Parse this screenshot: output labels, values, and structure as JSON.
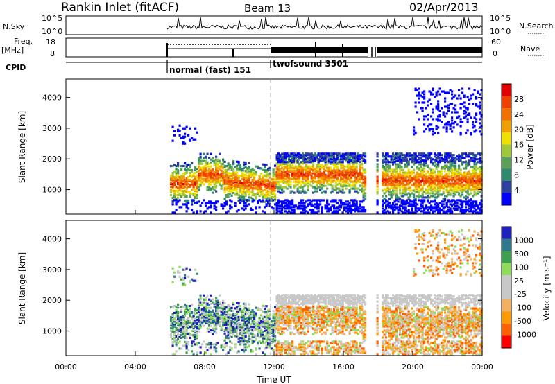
{
  "header": {
    "station": "Rankin Inlet (fitACF)",
    "beam": "Beam 13",
    "date": "02/Apr/2013"
  },
  "top_panels": {
    "nsky_label": "N.Sky",
    "nsearch_label": "N.Search",
    "noise_ticks": [
      "10^5",
      "10^0"
    ],
    "freq_label_1": "Freq.",
    "freq_label_2": "[MHz]",
    "freq_ticks": [
      "18",
      "8"
    ],
    "nave_label": "Nave",
    "nave_ticks": [
      "60",
      "0"
    ],
    "cpid_label": "CPID",
    "cpid_modes": [
      {
        "label": "normal (fast) 151",
        "start_hour": 6,
        "end_hour": 12
      },
      {
        "label": "twofsound 3501",
        "start_hour": 12,
        "end_hour": 24
      }
    ]
  },
  "colors": {
    "power_scale": [
      "#0000ff",
      "#2e3fa0",
      "#2e8a6e",
      "#5aa05a",
      "#9fc93a",
      "#f0e000",
      "#f0a000",
      "#f07000",
      "#f04000",
      "#e00000"
    ],
    "velocity_scale": [
      "#ff0000",
      "#ff6000",
      "#ff9a00",
      "#f2b060",
      "#c8c8c8",
      "#c8c8c8",
      "#8fdc5a",
      "#3ca050",
      "#2e7a8a",
      "#2020c0"
    ]
  },
  "chart_data": [
    {
      "type": "heatmap",
      "name": "power-panel",
      "ylabel": "Slant Range [km]",
      "yticks": [
        1000,
        2000,
        3000,
        4000
      ],
      "ylim": [
        200,
        4600
      ],
      "xlim": [
        0,
        24
      ],
      "colorbar_label": "Power [dB]",
      "colorbar_ticks": [
        "28",
        "24",
        "20",
        "16",
        "12",
        "8",
        "4"
      ],
      "color_range": [
        0,
        32
      ]
    },
    {
      "type": "heatmap",
      "name": "velocity-panel",
      "ylabel": "Slant Range [km]",
      "yticks": [
        1000,
        2000,
        3000,
        4000
      ],
      "ylim": [
        200,
        4600
      ],
      "xlim": [
        0,
        24
      ],
      "xlabel": "Time UT",
      "xticks": [
        "00:00",
        "04:00",
        "08:00",
        "12:00",
        "16:00",
        "20:00",
        "00:00"
      ],
      "colorbar_label": "Velocity [m s⁻¹]",
      "colorbar_ticks": [
        "1000",
        "500",
        "100",
        "25",
        "-25",
        "-100",
        "-500",
        "-1000"
      ]
    }
  ]
}
